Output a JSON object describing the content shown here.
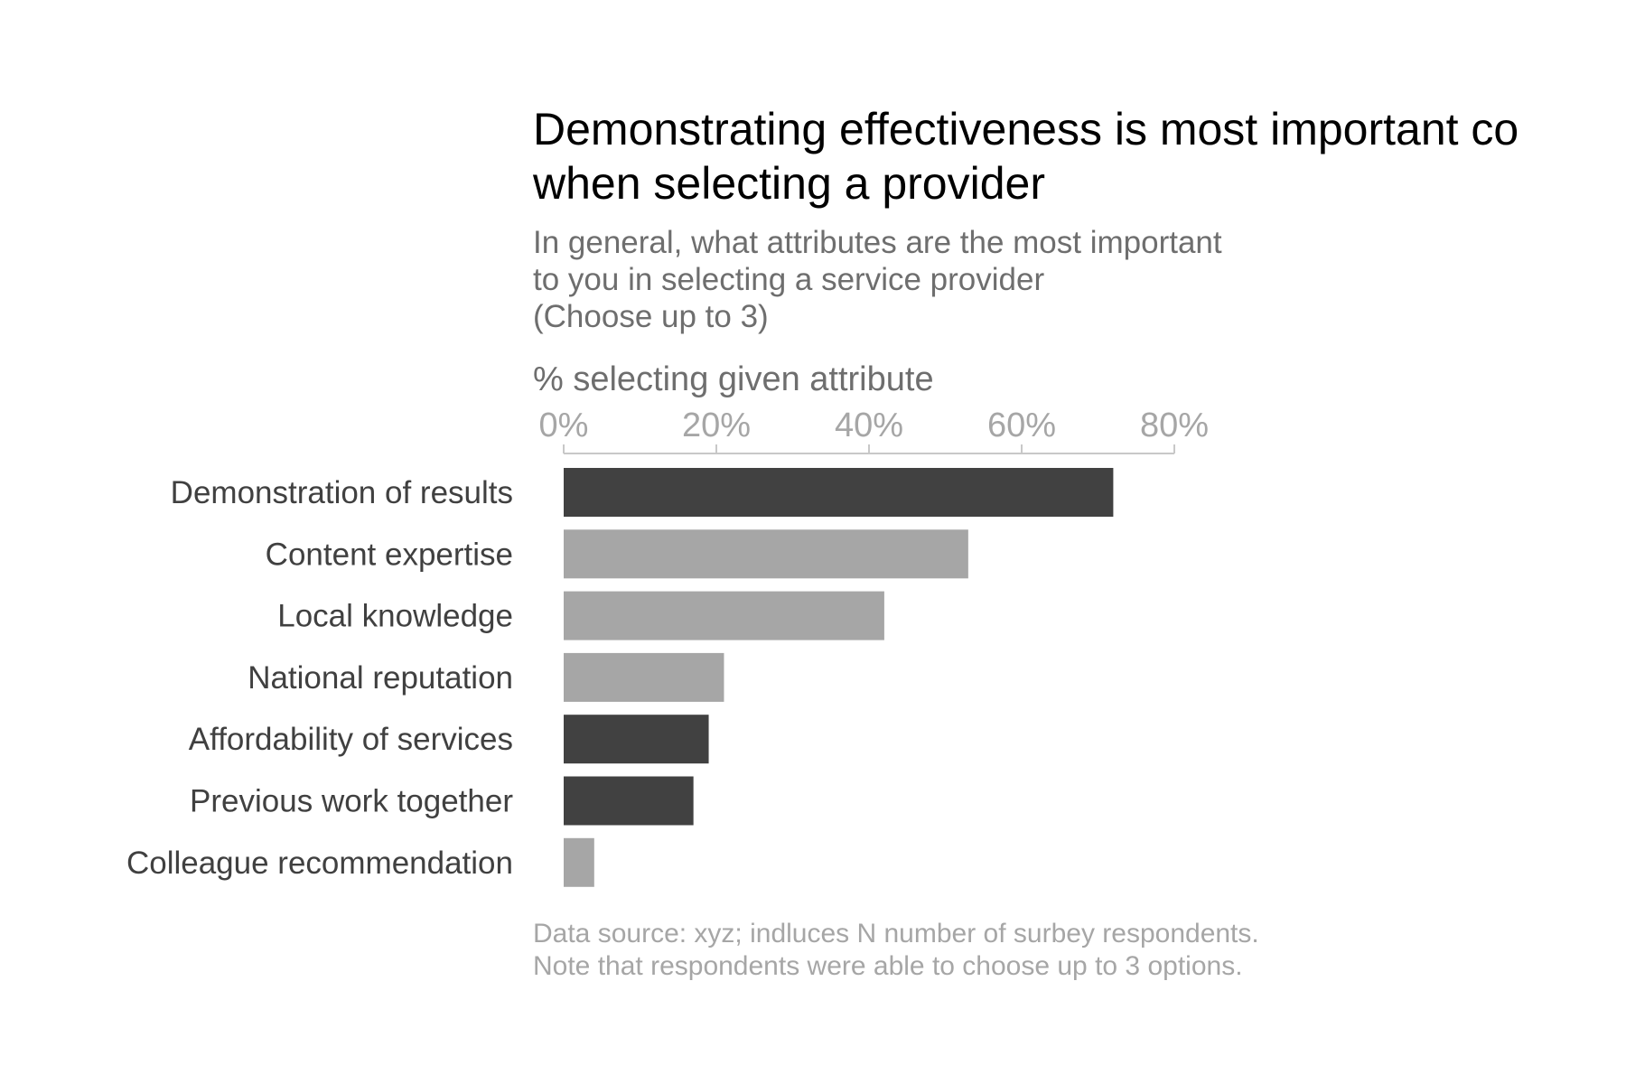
{
  "chart_data": {
    "type": "bar",
    "orientation": "horizontal",
    "title_lines": [
      "Demonstrating effectiveness is most important co",
      "when selecting a provider"
    ],
    "subtitle_lines": [
      "In general, what attributes are the most important",
      "to you in selecting a service provider",
      "(Choose up to 3)"
    ],
    "xlabel": "% selecting given attribute",
    "xlim": [
      0,
      80
    ],
    "x_ticks": [
      0,
      20,
      40,
      60,
      80
    ],
    "x_tick_labels": [
      "0%",
      "20%",
      "40%",
      "60%",
      "80%"
    ],
    "axis_position": "top",
    "grid": false,
    "legend": false,
    "categories": [
      "Demonstration of results",
      "Content expertise",
      "Local knowledge",
      "National reputation",
      "Affordability of services",
      "Previous work together",
      "Colleague recommendation"
    ],
    "values": [
      72,
      53,
      42,
      21,
      19,
      17,
      4
    ],
    "highlighted": [
      true,
      false,
      false,
      false,
      true,
      true,
      false
    ],
    "colors": {
      "highlight": "#414141",
      "default": "#a6a6a6"
    },
    "caption_lines": [
      "Data source: xyz; indluces N number of surbey respondents.",
      "Note that respondents were able to choose up to 3 options."
    ]
  }
}
